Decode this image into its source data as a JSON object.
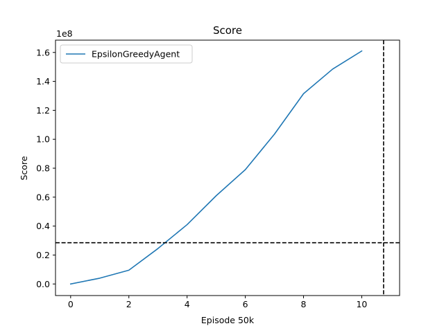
{
  "chart_data": {
    "type": "line",
    "title": "Score",
    "xlabel": "Episode 50k",
    "ylabel": "Score",
    "y_offset_text": "1e8",
    "xlim": [
      -0.52,
      11.3
    ],
    "ylim": [
      -0.08,
      1.685
    ],
    "y_scale_multiplier": 100000000,
    "x_ticks": [
      0,
      2,
      4,
      6,
      8,
      10
    ],
    "x_tick_labels": [
      "0",
      "2",
      "4",
      "6",
      "8",
      "10"
    ],
    "y_ticks": [
      0.0,
      0.2,
      0.4,
      0.6,
      0.8,
      1.0,
      1.2,
      1.4,
      1.6
    ],
    "y_tick_labels": [
      "0.0",
      "0.2",
      "0.4",
      "0.6",
      "0.8",
      "1.0",
      "1.2",
      "1.4",
      "1.6"
    ],
    "grid": false,
    "legend_position": "upper-left",
    "series": [
      {
        "name": "EpsilonGreedyAgent",
        "color": "#1f77b4",
        "x": [
          0,
          1,
          2,
          3,
          4,
          5,
          6,
          7,
          8,
          9,
          10
        ],
        "y": [
          0.0,
          0.04,
          0.095,
          0.245,
          0.41,
          0.61,
          0.79,
          1.035,
          1.315,
          1.485,
          1.61
        ]
      }
    ],
    "reference_lines": [
      {
        "orientation": "horizontal",
        "value": 0.285,
        "style": "dashed",
        "color": "#000000"
      },
      {
        "orientation": "vertical",
        "value": 10.75,
        "style": "dashed",
        "color": "#000000"
      }
    ]
  }
}
